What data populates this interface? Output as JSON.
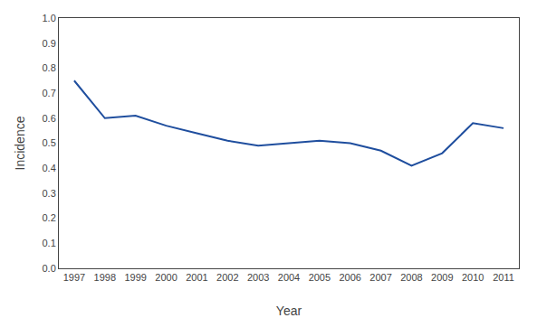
{
  "chart_data": {
    "type": "line",
    "x": [
      1997,
      1998,
      1999,
      2000,
      2001,
      2002,
      2003,
      2004,
      2005,
      2006,
      2007,
      2008,
      2009,
      2010,
      2011
    ],
    "values": [
      0.75,
      0.6,
      0.61,
      0.57,
      0.54,
      0.51,
      0.49,
      0.5,
      0.51,
      0.5,
      0.47,
      0.41,
      0.46,
      0.58,
      0.56
    ],
    "color": "#1f4e9e",
    "xlabel": "Year",
    "ylabel": "Incidence",
    "xlim": [
      1996.5,
      2011.5
    ],
    "xticks": [
      1997,
      1998,
      1999,
      2000,
      2001,
      2002,
      2003,
      2004,
      2005,
      2006,
      2007,
      2008,
      2009,
      2010,
      2011
    ],
    "ylim": [
      0.0,
      1.0
    ],
    "yticks": [
      {
        "value": 0,
        "label": "0.0"
      },
      0.1,
      0.2,
      0.3,
      0.4,
      0.5,
      0.6,
      0.7,
      0.8,
      0.9,
      {
        "value": 1,
        "label": "1.0"
      }
    ],
    "grid": false
  }
}
